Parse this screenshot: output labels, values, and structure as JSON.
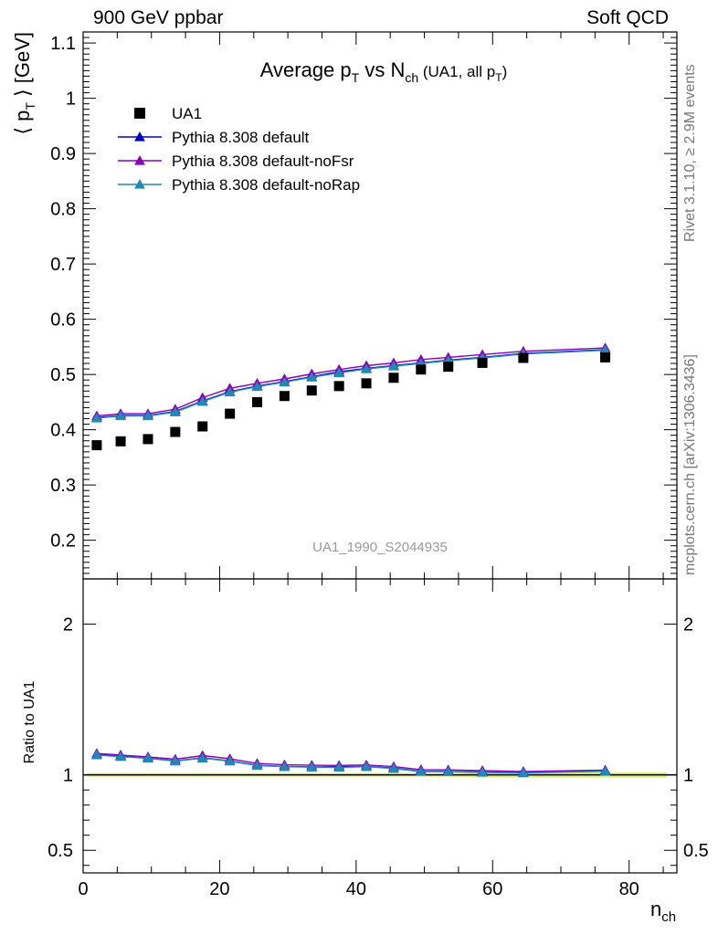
{
  "header": {
    "left": "900 GeV ppbar",
    "right": "Soft QCD"
  },
  "side_text": {
    "rivet": "Rivet 3.1.10, ≥ 2.9M events",
    "mcplots": "mcplots.cern.ch [arXiv:1306.3436]"
  },
  "chart_data": [
    {
      "type": "scatter",
      "panel": "main",
      "title": "Average p_T vs N_ch (UA1, all p_T)",
      "title_parts": {
        "a": "Average p",
        "a_sub": "T",
        "b": " vs N",
        "b_sub": "ch",
        "c": " (UA1, all p",
        "c_sub": "T",
        "d": ")"
      },
      "ylabel": "⟨ p_T ⟩ [GeV]",
      "ylabel_parts": {
        "a": "⟨ p",
        "sub": "T",
        "b": " ⟩ [GeV]"
      },
      "analysis_label": "UA1_1990_S2044935",
      "xlim": [
        0,
        87
      ],
      "ylim": [
        0.13,
        1.12
      ],
      "y_ticks": [
        0.2,
        0.3,
        0.4,
        0.5,
        0.6,
        0.7,
        0.8,
        0.9,
        1,
        1.1
      ],
      "y_tick_labels": [
        "0.2",
        "0.3",
        "0.4",
        "0.5",
        "0.6",
        "0.7",
        "0.8",
        "0.9",
        "1",
        "1.1"
      ],
      "legend_position": "top-left",
      "x": [
        2,
        5.5,
        9.5,
        13.5,
        17.5,
        21.5,
        25.5,
        29.5,
        33.5,
        37.5,
        41.5,
        45.5,
        49.5,
        53.5,
        58.5,
        64.5,
        76.5
      ],
      "series": [
        {
          "name": "UA1",
          "style": "data",
          "color": "#000000",
          "values": [
            0.372,
            0.379,
            0.383,
            0.396,
            0.406,
            0.429,
            0.45,
            0.461,
            0.471,
            0.479,
            0.484,
            0.494,
            0.509,
            0.514,
            0.521,
            0.53,
            0.531
          ]
        },
        {
          "name": "Pythia 8.308 default",
          "style": "mc",
          "color": "#0000cc",
          "values": [
            0.422,
            0.426,
            0.426,
            0.433,
            0.452,
            0.469,
            0.479,
            0.487,
            0.496,
            0.505,
            0.511,
            0.516,
            0.521,
            0.526,
            0.531,
            0.538,
            0.545
          ]
        },
        {
          "name": "Pythia 8.308 default-noFsr",
          "style": "mc",
          "color": "#8800bb",
          "values": [
            0.425,
            0.429,
            0.429,
            0.437,
            0.458,
            0.475,
            0.484,
            0.492,
            0.501,
            0.509,
            0.516,
            0.521,
            0.527,
            0.531,
            0.536,
            0.542,
            0.548
          ]
        },
        {
          "name": "Pythia 8.308 default-noRap",
          "style": "mc",
          "color": "#1f8ab5",
          "values": [
            0.421,
            0.425,
            0.425,
            0.432,
            0.451,
            0.468,
            0.478,
            0.486,
            0.495,
            0.503,
            0.51,
            0.515,
            0.52,
            0.525,
            0.53,
            0.537,
            0.544
          ]
        }
      ]
    },
    {
      "type": "scatter",
      "panel": "ratio",
      "ylabel": "Ratio to UA1",
      "xlabel": "n_ch",
      "xlabel_parts": {
        "a": "n",
        "sub": "ch"
      },
      "xlim": [
        0,
        87
      ],
      "ylim": [
        0.35,
        2.3
      ],
      "x_ticks": [
        0,
        20,
        40,
        60,
        80
      ],
      "x_tick_labels": [
        "0",
        "20",
        "40",
        "60",
        "80"
      ],
      "y_ticks": [
        0.5,
        1,
        2
      ],
      "y_tick_labels": [
        "0.5",
        "1",
        "2"
      ],
      "reference": 1,
      "uncertainty_band_color": "#ddf27a",
      "x": [
        2,
        5.5,
        9.5,
        13.5,
        17.5,
        21.5,
        25.5,
        29.5,
        33.5,
        37.5,
        41.5,
        45.5,
        49.5,
        53.5,
        58.5,
        64.5,
        76.5
      ],
      "series": [
        {
          "name": "Pythia 8.308 default",
          "color": "#0000cc",
          "values": [
            1.134,
            1.124,
            1.112,
            1.093,
            1.113,
            1.093,
            1.064,
            1.056,
            1.053,
            1.054,
            1.056,
            1.045,
            1.024,
            1.023,
            1.019,
            1.015,
            1.026
          ]
        },
        {
          "name": "Pythia 8.308 default-noFsr",
          "color": "#8800bb",
          "values": [
            1.142,
            1.132,
            1.12,
            1.104,
            1.128,
            1.107,
            1.076,
            1.067,
            1.064,
            1.063,
            1.066,
            1.055,
            1.035,
            1.033,
            1.029,
            1.023,
            1.032
          ]
        },
        {
          "name": "Pythia 8.308 default-noRap",
          "color": "#1f8ab5",
          "values": [
            1.132,
            1.121,
            1.11,
            1.091,
            1.111,
            1.091,
            1.062,
            1.054,
            1.051,
            1.05,
            1.054,
            1.042,
            1.022,
            1.021,
            1.017,
            1.013,
            1.024
          ]
        }
      ]
    }
  ]
}
